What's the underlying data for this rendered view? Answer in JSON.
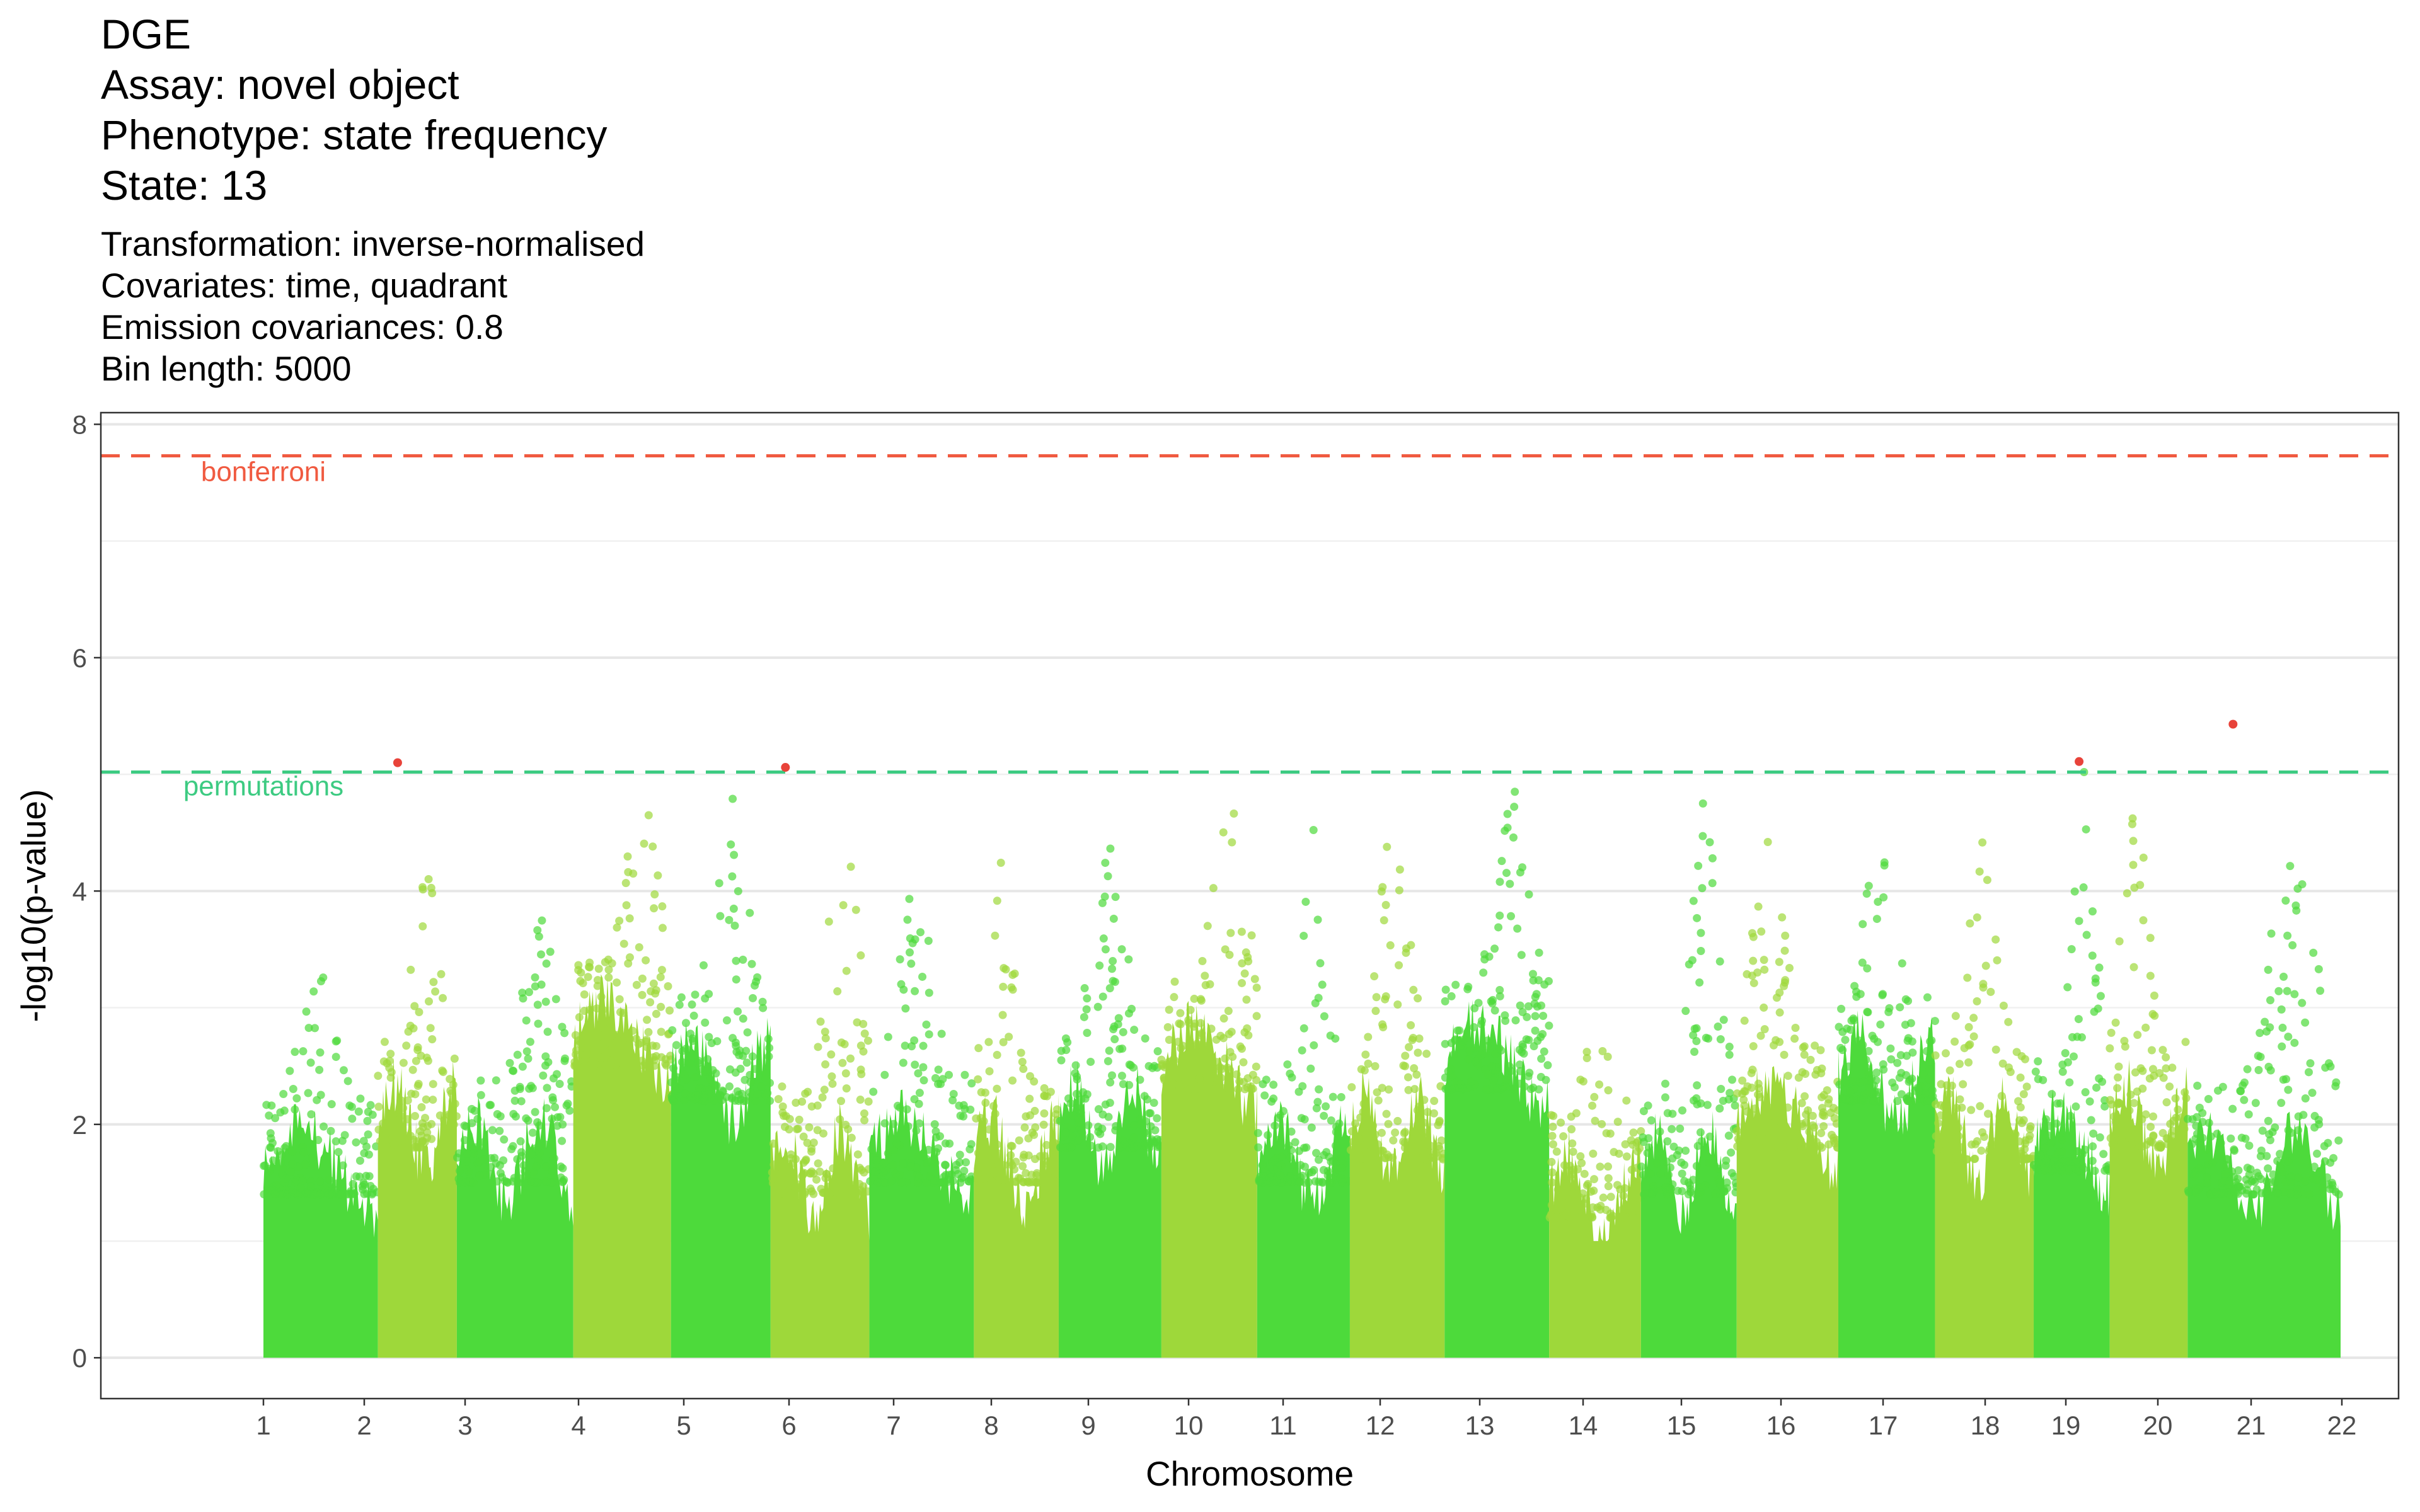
{
  "title": [
    "DGE",
    "Assay: novel object",
    "Phenotype: state frequency",
    "State: 13"
  ],
  "subtitle": [
    "Transformation: inverse-normalised",
    "Covariates: time, quadrant",
    "Emission covariances: 0.8",
    "Bin length: 5000"
  ],
  "chart_data": {
    "type": "scatter",
    "xlabel": "Chromosome",
    "ylabel": "-log10(p-value)",
    "ylim": [
      -0.35,
      8.1
    ],
    "y_ticks": [
      0,
      2,
      4,
      6,
      8
    ],
    "x_tick_labels": [
      "1",
      "2",
      "3",
      "4",
      "5",
      "6",
      "7",
      "8",
      "9",
      "10",
      "11",
      "12",
      "13",
      "14",
      "15",
      "16",
      "17",
      "18",
      "19",
      "20",
      "21",
      "22"
    ],
    "grid": "horizontal major and minor",
    "colors": {
      "dark_green": "#4DDA3B",
      "light_green": "#9ED83A",
      "hit_red": "#E8433A",
      "bonferroni": "#F05A40",
      "permutations": "#3DCB82"
    },
    "thresholds": [
      {
        "label": "bonferroni",
        "y": 7.73,
        "color": "#F05A40"
      },
      {
        "label": "permutations",
        "y": 5.02,
        "color": "#3DCB82"
      }
    ],
    "chromosomes": [
      {
        "chr": "1",
        "start": 0.42,
        "end": 1.58,
        "color": "dark",
        "base": 2.0,
        "peak": 3.3
      },
      {
        "chr": "2",
        "start": 1.58,
        "end": 2.38,
        "color": "light",
        "base": 2.4,
        "peak": 4.4
      },
      {
        "chr": "3",
        "start": 2.38,
        "end": 3.56,
        "color": "dark",
        "base": 2.1,
        "peak": 3.5
      },
      {
        "chr": "4",
        "start": 3.56,
        "end": 4.55,
        "color": "light",
        "base": 3.1,
        "peak": 4.9
      },
      {
        "chr": "5",
        "start": 4.55,
        "end": 5.56,
        "color": "dark",
        "base": 2.8,
        "peak": 4.8
      },
      {
        "chr": "6",
        "start": 5.56,
        "end": 6.56,
        "color": "light",
        "base": 2.0,
        "peak": 4.9
      },
      {
        "chr": "7",
        "start": 6.56,
        "end": 7.62,
        "color": "dark",
        "base": 2.1,
        "peak": 4.3
      },
      {
        "chr": "8",
        "start": 7.62,
        "end": 8.48,
        "color": "light",
        "base": 2.1,
        "peak": 4.2
      },
      {
        "chr": "9",
        "start": 8.48,
        "end": 9.52,
        "color": "dark",
        "base": 2.4,
        "peak": 4.3
      },
      {
        "chr": "10",
        "start": 9.52,
        "end": 10.49,
        "color": "light",
        "base": 2.9,
        "peak": 4.7
      },
      {
        "chr": "11",
        "start": 10.49,
        "end": 11.43,
        "color": "dark",
        "base": 2.1,
        "peak": 4.3
      },
      {
        "chr": "12",
        "start": 11.43,
        "end": 12.39,
        "color": "light",
        "base": 2.3,
        "peak": 4.7
      },
      {
        "chr": "13",
        "start": 12.39,
        "end": 13.45,
        "color": "dark",
        "base": 2.9,
        "peak": 4.6
      },
      {
        "chr": "14",
        "start": 13.45,
        "end": 14.38,
        "color": "light",
        "base": 1.8,
        "peak": 3.2
      },
      {
        "chr": "15",
        "start": 14.38,
        "end": 15.35,
        "color": "dark",
        "base": 2.0,
        "peak": 4.7
      },
      {
        "chr": "16",
        "start": 15.35,
        "end": 16.38,
        "color": "light",
        "base": 2.4,
        "peak": 4.4
      },
      {
        "chr": "17",
        "start": 16.38,
        "end": 17.36,
        "color": "dark",
        "base": 2.8,
        "peak": 4.2
      },
      {
        "chr": "18",
        "start": 17.36,
        "end": 18.36,
        "color": "light",
        "base": 2.3,
        "peak": 4.3
      },
      {
        "chr": "19",
        "start": 18.36,
        "end": 19.13,
        "color": "dark",
        "base": 2.2,
        "peak": 4.8
      },
      {
        "chr": "20",
        "start": 19.13,
        "end": 19.92,
        "color": "light",
        "base": 2.4,
        "peak": 4.8
      },
      {
        "chr": "21",
        "start": 19.92,
        "end": 21.47,
        "color": "dark",
        "base": 2.0,
        "peak": 4.35
      }
    ],
    "significant_points": [
      {
        "x": 1.78,
        "y": 5.1
      },
      {
        "x": 5.71,
        "y": 5.06
      },
      {
        "x": 18.82,
        "y": 5.11
      },
      {
        "x": 20.38,
        "y": 5.43
      }
    ]
  }
}
